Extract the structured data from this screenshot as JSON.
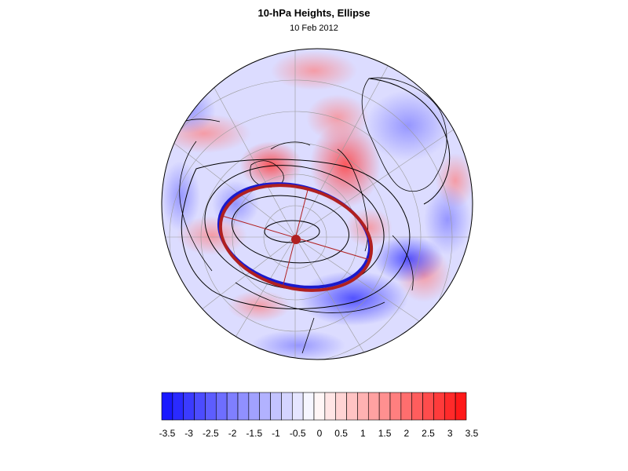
{
  "title": "10-hPa Heights, Ellipse",
  "date": "10 Feb 2012",
  "colorbar": {
    "min": -3.5,
    "max": 3.5,
    "step": 0.25,
    "tick_labels": [
      "-3.5",
      "-3",
      "-2.5",
      "-2",
      "-1.5",
      "-1",
      "-0.5",
      "0",
      "0.5",
      "1",
      "1.5",
      "2",
      "2.5",
      "3",
      "3.5"
    ],
    "colors": {
      "negative_max": "#1010ff",
      "neutral": "#ffffff",
      "positive_max": "#ff1010"
    }
  },
  "ellipse": {
    "blue_color": "#1a1acc",
    "red_color": "#b02020"
  }
}
